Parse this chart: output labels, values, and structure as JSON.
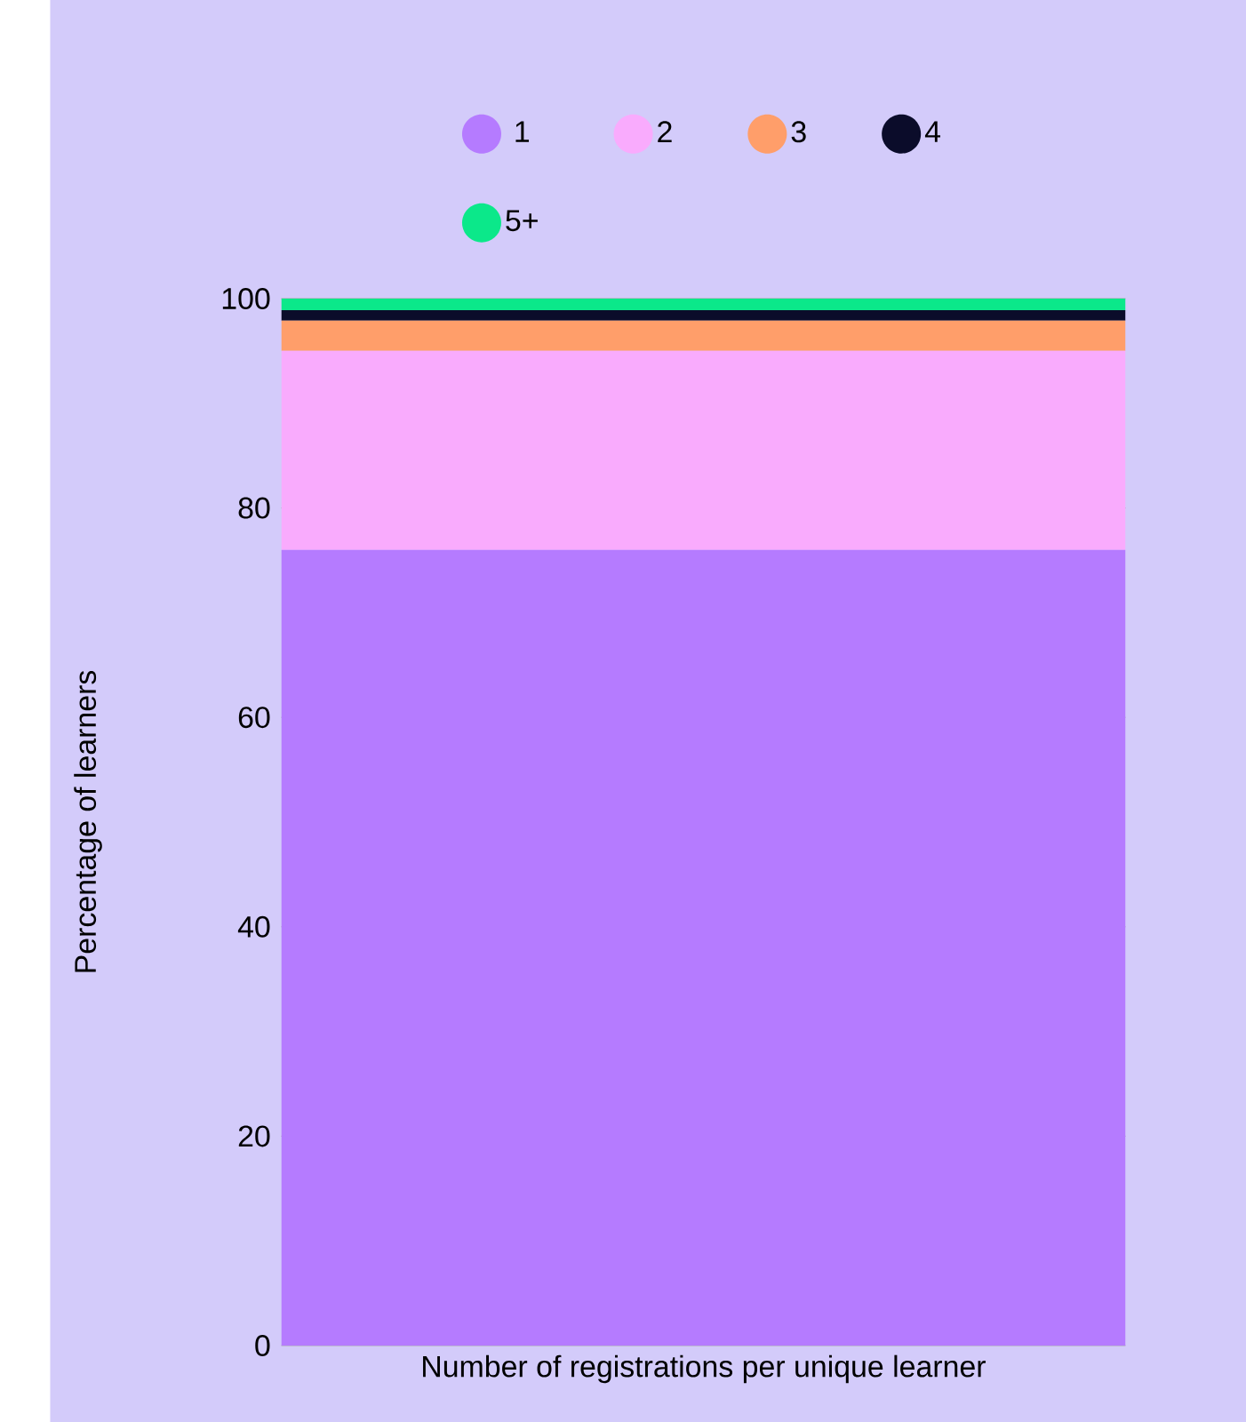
{
  "chart_data": {
    "type": "bar",
    "stacked": true,
    "xlabel": "Number of registrations per unique learner",
    "ylabel": "Percentage of learners",
    "categories": [
      null
    ],
    "series": [
      {
        "name": "1",
        "color": "#b57bff",
        "values": [
          76
        ]
      },
      {
        "name": "2",
        "color": "#f9abfd",
        "values": [
          19
        ]
      },
      {
        "name": "3",
        "color": "#ff9e6a",
        "values": [
          2.9
        ]
      },
      {
        "name": "4",
        "color": "#0b0c2a",
        "values": [
          1
        ]
      },
      {
        "name": "5+",
        "color": "#0be88a",
        "values": [
          1.1
        ]
      }
    ],
    "ylim": [
      0,
      100
    ],
    "yticks": [
      0,
      20,
      40,
      60,
      80,
      100
    ],
    "grid": "y",
    "legend": "top",
    "marker": "circle"
  }
}
